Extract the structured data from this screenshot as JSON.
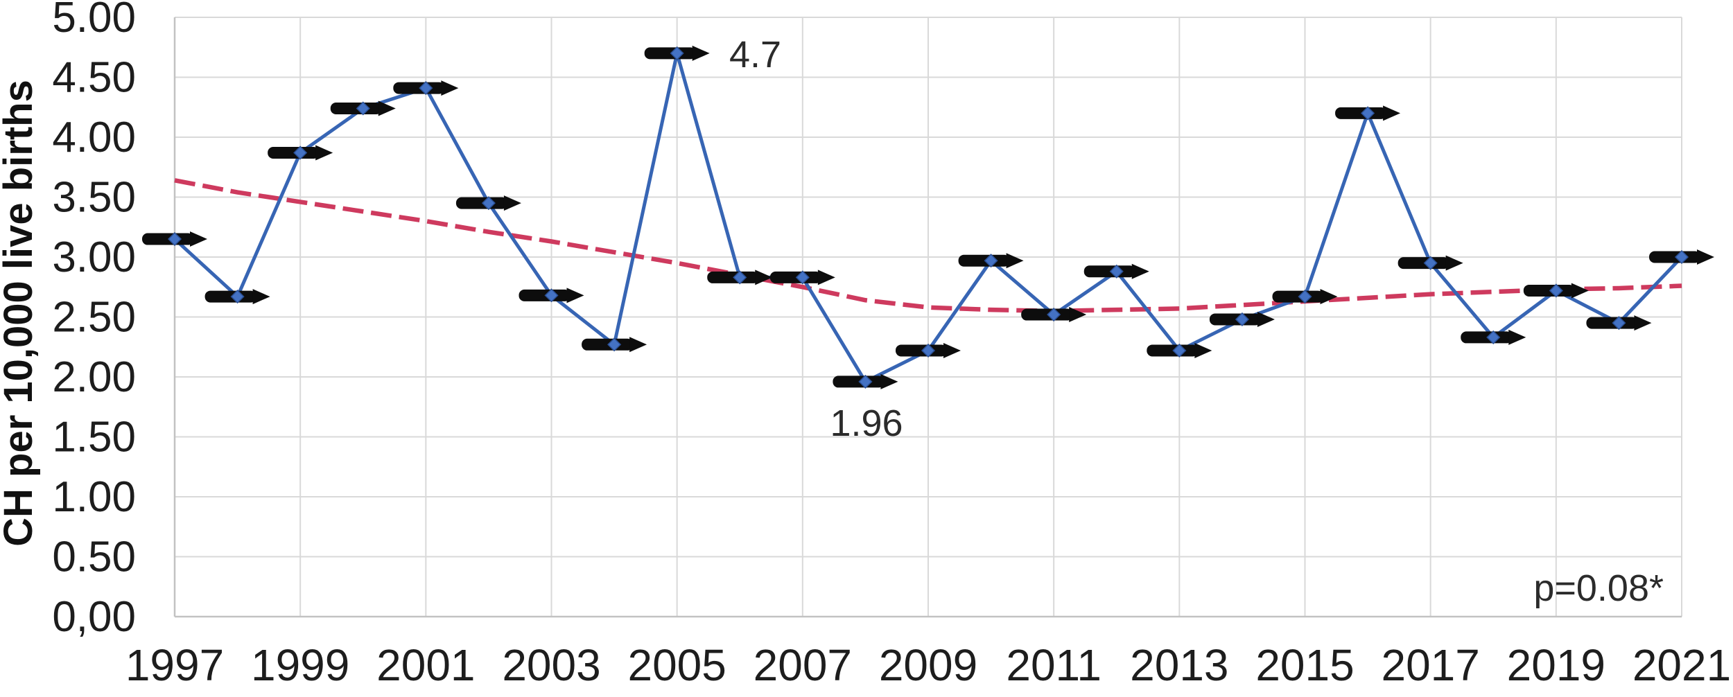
{
  "chart_data": {
    "type": "line",
    "title": "",
    "xlabel": "",
    "ylabel": "CH per 10,000 live births",
    "ylim": [
      0,
      5
    ],
    "y_tick_step": 0.5,
    "grid": true,
    "legend": "none",
    "y_tick_labels": [
      "5.00",
      "4.50",
      "4.00",
      "3.50",
      "3.00",
      "2.50",
      "2.00",
      "1.50",
      "1.00",
      "0.50",
      "0,00"
    ],
    "x_tick_labels": [
      "1997",
      "1999",
      "2001",
      "2003",
      "2005",
      "2007",
      "2009",
      "2011",
      "2013",
      "2015",
      "2017",
      "2019",
      "2021"
    ],
    "years": [
      1997,
      1998,
      1999,
      2000,
      2001,
      2002,
      2003,
      2004,
      2005,
      2006,
      2007,
      2008,
      2009,
      2010,
      2011,
      2012,
      2013,
      2014,
      2015,
      2016,
      2017,
      2018,
      2019,
      2020,
      2021
    ],
    "series": [
      {
        "name": "CH rate per 10,000 live births",
        "type": "line",
        "color": "#3765B4",
        "marker": "black-dash-arrow",
        "marker_color": "#0d0d0d",
        "point_color": "#4472C4",
        "values": [
          3.15,
          2.67,
          3.87,
          4.24,
          4.41,
          3.45,
          2.68,
          2.27,
          4.7,
          2.83,
          2.83,
          1.96,
          2.22,
          2.97,
          2.52,
          2.88,
          2.22,
          2.48,
          2.67,
          4.2,
          2.95,
          2.33,
          2.72,
          2.45,
          3.0
        ]
      },
      {
        "name": "trend line",
        "type": "dashed-line",
        "color": "#CE3A5E",
        "values": [
          3.64,
          3.54,
          3.46,
          3.38,
          3.3,
          3.21,
          3.13,
          3.04,
          2.95,
          2.85,
          2.75,
          2.64,
          2.58,
          2.56,
          2.55,
          2.56,
          2.57,
          2.6,
          2.63,
          2.66,
          2.69,
          2.71,
          2.73,
          2.74,
          2.76
        ]
      }
    ],
    "annotations": [
      {
        "text": "4.7",
        "year": 2005,
        "value": 4.7,
        "position": "right-of-peak"
      },
      {
        "text": "1.96",
        "year": 2008,
        "value": 1.96,
        "position": "below-point"
      },
      {
        "text": "p=0.08*",
        "position": "bottom-right"
      }
    ],
    "colors": {
      "series_blue": "#3765B4",
      "trend_red": "#CE3A5E",
      "marker_black": "#0d0d0d",
      "gridline": "#D9D9D9",
      "axis_line": "#C2C2C2",
      "text": "#1d1d1d"
    }
  }
}
